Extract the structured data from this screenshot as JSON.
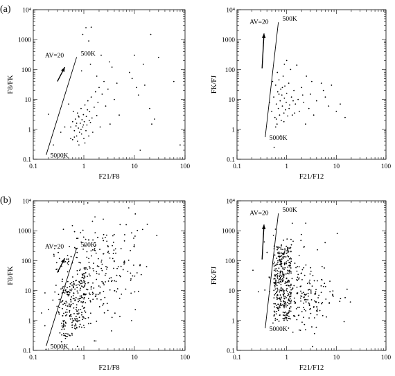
{
  "figure": {
    "row_labels": [
      "(a)",
      "(b)"
    ]
  },
  "chart_data": [
    {
      "id": "a-left",
      "type": "scatter",
      "xlabel": "F21/F8",
      "ylabel": "F8/FK",
      "xlim": [
        0.1,
        100
      ],
      "ylim": [
        0.1,
        10000
      ],
      "xscale": "log",
      "yscale": "log",
      "x_ticks": [
        "0.1",
        "1",
        "10",
        "100"
      ],
      "y_ticks": [
        "0.1",
        "1",
        "10",
        "100",
        "1000",
        "10⁴"
      ],
      "grid": false,
      "line": {
        "x": [
          0.18,
          0.72
        ],
        "y": [
          0.14,
          260
        ],
        "label_start": "5000K",
        "label_end": "500K"
      },
      "arrow": {
        "x": [
          0.3,
          0.42
        ],
        "y": [
          40,
          120
        ],
        "label": "AV=20"
      },
      "points": [
        [
          0.2,
          3.2
        ],
        [
          0.25,
          0.3
        ],
        [
          0.35,
          0.8
        ],
        [
          0.42,
          1.2
        ],
        [
          0.5,
          7
        ],
        [
          0.55,
          0.5
        ],
        [
          0.6,
          1.8
        ],
        [
          0.62,
          4
        ],
        [
          0.65,
          0.9
        ],
        [
          0.68,
          2.2
        ],
        [
          0.7,
          1.3
        ],
        [
          0.72,
          0.6
        ],
        [
          0.75,
          3.5
        ],
        [
          0.78,
          1.1
        ],
        [
          0.8,
          2.6
        ],
        [
          0.82,
          0.8
        ],
        [
          0.85,
          1.6
        ],
        [
          0.88,
          5
        ],
        [
          0.9,
          0.7
        ],
        [
          0.92,
          2.1
        ],
        [
          0.95,
          1.2
        ],
        [
          0.98,
          3.1
        ],
        [
          1.0,
          0.5
        ],
        [
          1.02,
          1.8
        ],
        [
          1.05,
          6.5
        ],
        [
          1.1,
          0.9
        ],
        [
          1.12,
          2.7
        ],
        [
          1.15,
          1.4
        ],
        [
          1.2,
          9
        ],
        [
          1.25,
          0.6
        ],
        [
          1.3,
          3.9
        ],
        [
          1.35,
          1.7
        ],
        [
          1.4,
          12
        ],
        [
          1.45,
          2.4
        ],
        [
          1.5,
          0.8
        ],
        [
          1.6,
          5.5
        ],
        [
          1.7,
          18
        ],
        [
          1.8,
          2.9
        ],
        [
          1.9,
          8
        ],
        [
          2.0,
          25
        ],
        [
          2.1,
          1.2
        ],
        [
          2.3,
          15
        ],
        [
          2.5,
          40
        ],
        [
          2.7,
          6
        ],
        [
          3.0,
          22
        ],
        [
          3.3,
          1.5
        ],
        [
          3.6,
          120
        ],
        [
          4.0,
          10
        ],
        [
          4.5,
          35
        ],
        [
          5.0,
          3
        ],
        [
          1.1,
          2500
        ],
        [
          1.4,
          2600
        ],
        [
          0.95,
          1500
        ],
        [
          1.25,
          900
        ],
        [
          0.9,
          90
        ],
        [
          1.35,
          150
        ],
        [
          1.8,
          60
        ],
        [
          2.2,
          300
        ],
        [
          3.2,
          180
        ],
        [
          8.0,
          80
        ],
        [
          9.0,
          50
        ],
        [
          10,
          300
        ],
        [
          11,
          25
        ],
        [
          13,
          0.2
        ],
        [
          16,
          30
        ],
        [
          20,
          5
        ],
        [
          22,
          1.5
        ],
        [
          25,
          2.2
        ],
        [
          21,
          1500
        ],
        [
          30,
          250
        ],
        [
          15,
          150
        ],
        [
          12,
          14
        ],
        [
          60,
          40
        ],
        [
          80,
          0.3
        ],
        [
          0.8,
          0.3
        ],
        [
          0.55,
          1.2
        ],
        [
          0.6,
          0.45
        ],
        [
          0.75,
          0.4
        ],
        [
          1.05,
          0.35
        ],
        [
          0.65,
          0.55
        ],
        [
          0.78,
          2.8
        ],
        [
          0.88,
          1.0
        ],
        [
          0.98,
          1.4
        ],
        [
          1.18,
          4.5
        ],
        [
          1.28,
          2.0
        ],
        [
          0.72,
          1.6
        ]
      ]
    },
    {
      "id": "a-right",
      "type": "scatter",
      "xlabel": "F21/F12",
      "ylabel": "FK/FJ",
      "xlim": [
        0.1,
        100
      ],
      "ylim": [
        0.1,
        10000
      ],
      "xscale": "log",
      "yscale": "log",
      "x_ticks": [
        "0.1",
        "1",
        "10",
        "100"
      ],
      "y_ticks": [
        "0.1",
        "1",
        "10",
        "100",
        "1000",
        "10⁴"
      ],
      "grid": false,
      "line": {
        "x": [
          0.37,
          0.68
        ],
        "y": [
          0.55,
          3800
        ],
        "label_start": "5000K",
        "label_end": "500K"
      },
      "arrow": {
        "x": [
          0.32,
          0.35
        ],
        "y": [
          110,
          1600
        ],
        "label": "AV=20"
      },
      "points": [
        [
          0.5,
          4
        ],
        [
          0.55,
          12
        ],
        [
          0.58,
          2.5
        ],
        [
          0.6,
          30
        ],
        [
          0.62,
          7
        ],
        [
          0.64,
          1.5
        ],
        [
          0.66,
          18
        ],
        [
          0.68,
          5
        ],
        [
          0.7,
          45
        ],
        [
          0.72,
          3
        ],
        [
          0.74,
          9
        ],
        [
          0.76,
          22
        ],
        [
          0.78,
          2
        ],
        [
          0.8,
          14
        ],
        [
          0.82,
          6
        ],
        [
          0.85,
          60
        ],
        [
          0.88,
          3.5
        ],
        [
          0.9,
          11
        ],
        [
          0.92,
          28
        ],
        [
          0.95,
          4.5
        ],
        [
          0.98,
          8
        ],
        [
          1.0,
          16
        ],
        [
          1.05,
          2.8
        ],
        [
          1.1,
          35
        ],
        [
          1.15,
          6.5
        ],
        [
          1.2,
          100
        ],
        [
          1.25,
          12
        ],
        [
          1.3,
          3
        ],
        [
          1.4,
          20
        ],
        [
          1.5,
          7
        ],
        [
          1.6,
          140
        ],
        [
          1.7,
          10
        ],
        [
          1.8,
          4
        ],
        [
          2.0,
          25
        ],
        [
          2.2,
          8
        ],
        [
          2.5,
          60
        ],
        [
          2.8,
          5
        ],
        [
          3.0,
          15
        ],
        [
          3.5,
          3
        ],
        [
          4.0,
          9
        ],
        [
          5.0,
          35
        ],
        [
          6.0,
          12
        ],
        [
          7.0,
          6
        ],
        [
          8.0,
          30
        ],
        [
          10,
          4
        ],
        [
          12,
          7
        ],
        [
          15,
          2.5
        ],
        [
          0.56,
          0.25
        ],
        [
          0.45,
          8
        ],
        [
          0.6,
          1.2
        ],
        [
          0.75,
          0.6
        ],
        [
          1.0,
          200
        ],
        [
          0.9,
          150
        ],
        [
          0.52,
          40
        ],
        [
          0.65,
          80
        ],
        [
          0.7,
          15
        ],
        [
          1.35,
          9
        ],
        [
          2.1,
          14
        ],
        [
          3.2,
          40
        ],
        [
          5.5,
          20
        ],
        [
          0.82,
          25
        ],
        [
          1.12,
          5
        ],
        [
          1.45,
          3.5
        ],
        [
          0.62,
          2.2
        ],
        [
          0.88,
          1.8
        ],
        [
          2.4,
          1.5
        ]
      ]
    },
    {
      "id": "b-left",
      "type": "scatter",
      "xlabel": "F21/F8",
      "ylabel": "F8/FK",
      "xlim": [
        0.1,
        100
      ],
      "ylim": [
        0.1,
        10000
      ],
      "xscale": "log",
      "yscale": "log",
      "x_ticks": [
        "0.1",
        "1",
        "10",
        "100"
      ],
      "y_ticks": [
        "0.1",
        "1",
        "10",
        "100",
        "1000",
        "10⁴"
      ],
      "grid": false,
      "line": {
        "x": [
          0.18,
          0.72
        ],
        "y": [
          0.14,
          260
        ],
        "label_start": "5000K",
        "label_end": "500K"
      },
      "arrow": {
        "x": [
          0.3,
          0.42
        ],
        "y": [
          40,
          120
        ],
        "label": "AV=20"
      },
      "points": [],
      "generated": {
        "count": 500,
        "seed": 7,
        "x_center": 1.2,
        "y_center": 3,
        "style": "dense"
      }
    },
    {
      "id": "b-right",
      "type": "scatter",
      "xlabel": "F21/F12",
      "ylabel": "FK/FJ",
      "xlim": [
        0.1,
        100
      ],
      "ylim": [
        0.1,
        10000
      ],
      "xscale": "log",
      "yscale": "log",
      "x_ticks": [
        "0.1",
        "1",
        "10",
        "100"
      ],
      "y_ticks": [
        "0.1",
        "1",
        "10",
        "100",
        "1000",
        "10⁴"
      ],
      "grid": false,
      "line": {
        "x": [
          0.37,
          0.68
        ],
        "y": [
          0.55,
          3800
        ],
        "label_start": "5000K",
        "label_end": "500K"
      },
      "arrow": {
        "x": [
          0.32,
          0.35
        ],
        "y": [
          110,
          1600
        ],
        "label": "AV=20"
      },
      "points": [],
      "generated": {
        "count": 520,
        "seed": 13,
        "x_center": 1.4,
        "y_center": 4,
        "style": "dense"
      }
    }
  ]
}
